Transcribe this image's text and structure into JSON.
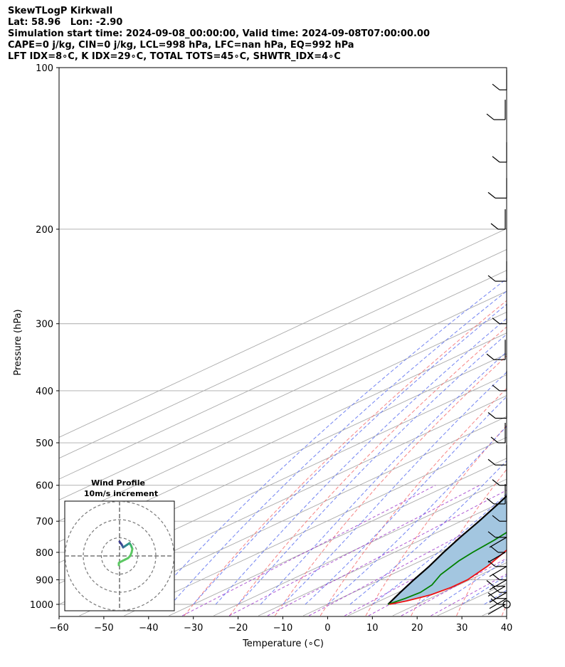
{
  "header": {
    "line1": "SkewTLogP Kirkwall",
    "line2": "Lat: 58.96   Lon: -2.90",
    "line3": "Simulation start time: 2024-09-08_00:00:00, Valid time: 2024-09-08T07:00:00.00",
    "line4": "CAPE=0 j/kg, CIN=0 j/kg, LCL=998 hPa, LFC=nan hPa, EQ=992 hPa",
    "line5": "LFT IDX=8∘C, K IDX=29∘C, TOTAL TOTS=45∘C, SHWTR_IDX=4∘C"
  },
  "chart_data": {
    "type": "line",
    "xlabel": "Temperature (∘C)",
    "ylabel": "Pressure (hPa)",
    "xlim": [
      -60,
      40
    ],
    "ylim": [
      1050,
      100
    ],
    "y_scale": "log",
    "x_ticks": [
      -60,
      -50,
      -40,
      -30,
      -20,
      -10,
      0,
      10,
      20,
      30,
      40
    ],
    "y_ticks": [
      1000,
      900,
      800,
      700,
      600,
      500,
      400,
      300,
      200,
      100
    ],
    "grid": true,
    "colors": {
      "temperature": "#ee1111",
      "dewpoint": "#008000",
      "parcel": "#000000",
      "cape_fill": "#a3c6e0",
      "dry_adiabat": "#f46d6d",
      "moist_adiabat": "#5a6ef0",
      "mixing_ratio": "#9b30c8",
      "isotherm": "#aaaaaa"
    },
    "temperature_profile": [
      [
        1000,
        13.8
      ],
      [
        985,
        16.0
      ],
      [
        960,
        18.5
      ],
      [
        930,
        19.5
      ],
      [
        900,
        19.5
      ],
      [
        850,
        17.5
      ],
      [
        800,
        14.5
      ],
      [
        750,
        11.5
      ],
      [
        700,
        9.0
      ],
      [
        650,
        7.0
      ],
      [
        600,
        5.0
      ],
      [
        550,
        2.5
      ],
      [
        500,
        -1.0
      ],
      [
        450,
        -4.5
      ],
      [
        400,
        -9.0
      ],
      [
        350,
        -14.5
      ],
      [
        300,
        -21.0
      ],
      [
        250,
        -29.0
      ],
      [
        220,
        -33.5
      ],
      [
        200,
        -36.0
      ],
      [
        175,
        -36.0
      ],
      [
        150,
        -38.0
      ],
      [
        125,
        -42.5
      ],
      [
        110,
        -45.0
      ],
      [
        100,
        -46.5
      ]
    ],
    "dewpoint_profile": [
      [
        1000,
        13.5
      ],
      [
        975,
        14.5
      ],
      [
        950,
        15.0
      ],
      [
        920,
        14.0
      ],
      [
        880,
        11.0
      ],
      [
        830,
        8.5
      ],
      [
        800,
        7.5
      ],
      [
        760,
        6.5
      ],
      [
        720,
        5.0
      ],
      [
        680,
        2.0
      ],
      [
        640,
        -6.0
      ],
      [
        600,
        -15.0
      ],
      [
        560,
        -23.0
      ],
      [
        540,
        -25.0
      ],
      [
        505,
        -17.0
      ],
      [
        480,
        -12.5
      ],
      [
        440,
        -11.5
      ],
      [
        400,
        -13.0
      ],
      [
        370,
        -17.0
      ],
      [
        345,
        -22.0
      ],
      [
        325,
        -26.5
      ],
      [
        305,
        -24.0
      ],
      [
        285,
        -27.5
      ],
      [
        260,
        -31.5
      ],
      [
        240,
        -37.0
      ],
      [
        220,
        -40.5
      ],
      [
        205,
        -42.5
      ],
      [
        190,
        -40.0
      ],
      [
        180,
        -44.0
      ],
      [
        165,
        -48.0
      ],
      [
        150,
        -47.0
      ],
      [
        130,
        -43.5
      ],
      [
        115,
        -39.5
      ],
      [
        100,
        -36.0
      ]
    ],
    "parcel_profile": [
      [
        1000,
        13.5
      ],
      [
        950,
        10.5
      ],
      [
        900,
        7.5
      ],
      [
        850,
        4.5
      ],
      [
        800,
        1.0
      ],
      [
        750,
        -2.5
      ],
      [
        700,
        -6.0
      ],
      [
        650,
        -10.0
      ],
      [
        600,
        -14.5
      ],
      [
        550,
        -19.5
      ],
      [
        500,
        -25.0
      ],
      [
        450,
        -31.0
      ],
      [
        400,
        -37.5
      ],
      [
        350,
        -45.0
      ],
      [
        300,
        -53.0
      ],
      [
        250,
        -62.5
      ],
      [
        200,
        -74.0
      ],
      [
        150,
        -88.0
      ],
      [
        125,
        -96.0
      ],
      [
        100,
        -105.0
      ]
    ],
    "wind_barbs_pressure": [
      1000,
      975,
      950,
      925,
      900,
      850,
      800,
      750,
      700,
      650,
      600,
      550,
      500,
      450,
      400,
      350,
      300,
      250,
      200,
      175,
      150,
      125,
      110
    ],
    "wind_profile_inset": {
      "title": "Wind Profile",
      "subtitle": "10m/s increment",
      "rings": 3
    }
  }
}
